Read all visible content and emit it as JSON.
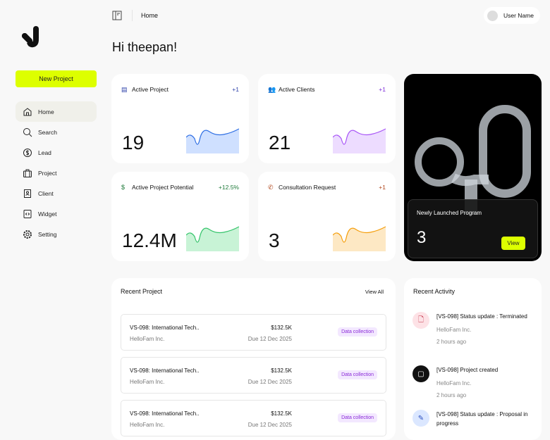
{
  "header": {
    "breadcrumb": "Home",
    "user_name": "User Name",
    "greeting": "Hi theepan!"
  },
  "sidebar": {
    "new_project": "New Project",
    "items": [
      {
        "label": "Home",
        "icon": "home-icon",
        "active": true
      },
      {
        "label": "Search",
        "icon": "search-icon"
      },
      {
        "label": "Lead",
        "icon": "dollar-circle-icon"
      },
      {
        "label": "Project",
        "icon": "briefcase-icon"
      },
      {
        "label": "Client",
        "icon": "contact-icon"
      },
      {
        "label": "Widget",
        "icon": "code-icon"
      },
      {
        "label": "Setting",
        "icon": "gear-icon"
      }
    ]
  },
  "stats": [
    {
      "label": "Active Project",
      "delta": "+1",
      "value": "19",
      "icon": "document-icon",
      "color": "#2f6fe4",
      "fill": "#cfe0ff"
    },
    {
      "label": "Active Clients",
      "delta": "+1",
      "value": "21",
      "icon": "users-icon",
      "color": "#a855f7",
      "fill": "#eddcff"
    },
    {
      "label": "Active Project Potential",
      "delta": "+12.5%",
      "value": "12.4M",
      "icon": "dollar-icon",
      "color": "#34c46a",
      "fill": "#c8f3d6"
    },
    {
      "label": "Consultation Request",
      "delta": "+1",
      "value": "3",
      "icon": "phone-icon",
      "color": "#f59e0b",
      "fill": "#fde8c4"
    }
  ],
  "delta_colors": [
    "#2b3fa8",
    "#7c2ad8",
    "#1f7a3a",
    "#b0451a"
  ],
  "program": {
    "label": "Newly Launched Program",
    "value": "3",
    "button": "View"
  },
  "recent_project": {
    "title": "Recent Project",
    "view_all": "View All",
    "rows": [
      {
        "name": "VS-098: International Tech..",
        "company": "HelloFam Inc.",
        "amount": "$132.5K",
        "due": "Due 12 Dec 2025",
        "status": "Data collection"
      },
      {
        "name": "VS-098: International Tech..",
        "company": "HelloFam Inc.",
        "amount": "$132.5K",
        "due": "Due 12 Dec 2025",
        "status": "Data collection"
      },
      {
        "name": "VS-098: International Tech..",
        "company": "HelloFam Inc.",
        "amount": "$132.5K",
        "due": "Due 12 Dec 2025",
        "status": "Data collection"
      }
    ]
  },
  "recent_activity": {
    "title": "Recent Activity",
    "items": [
      {
        "text": "[VS-098] Status update : Terminated",
        "company": "HelloFam Inc.",
        "time": "2 hours ago",
        "icon": "file-minus-icon"
      },
      {
        "text": "[VS-098] Project created",
        "company": "HelloFam Inc.",
        "time": "2 hours ago",
        "icon": "new-file-icon"
      },
      {
        "text": "[VS-098] Status update : Proposal in progress",
        "icon": "edit-document-icon"
      }
    ]
  }
}
